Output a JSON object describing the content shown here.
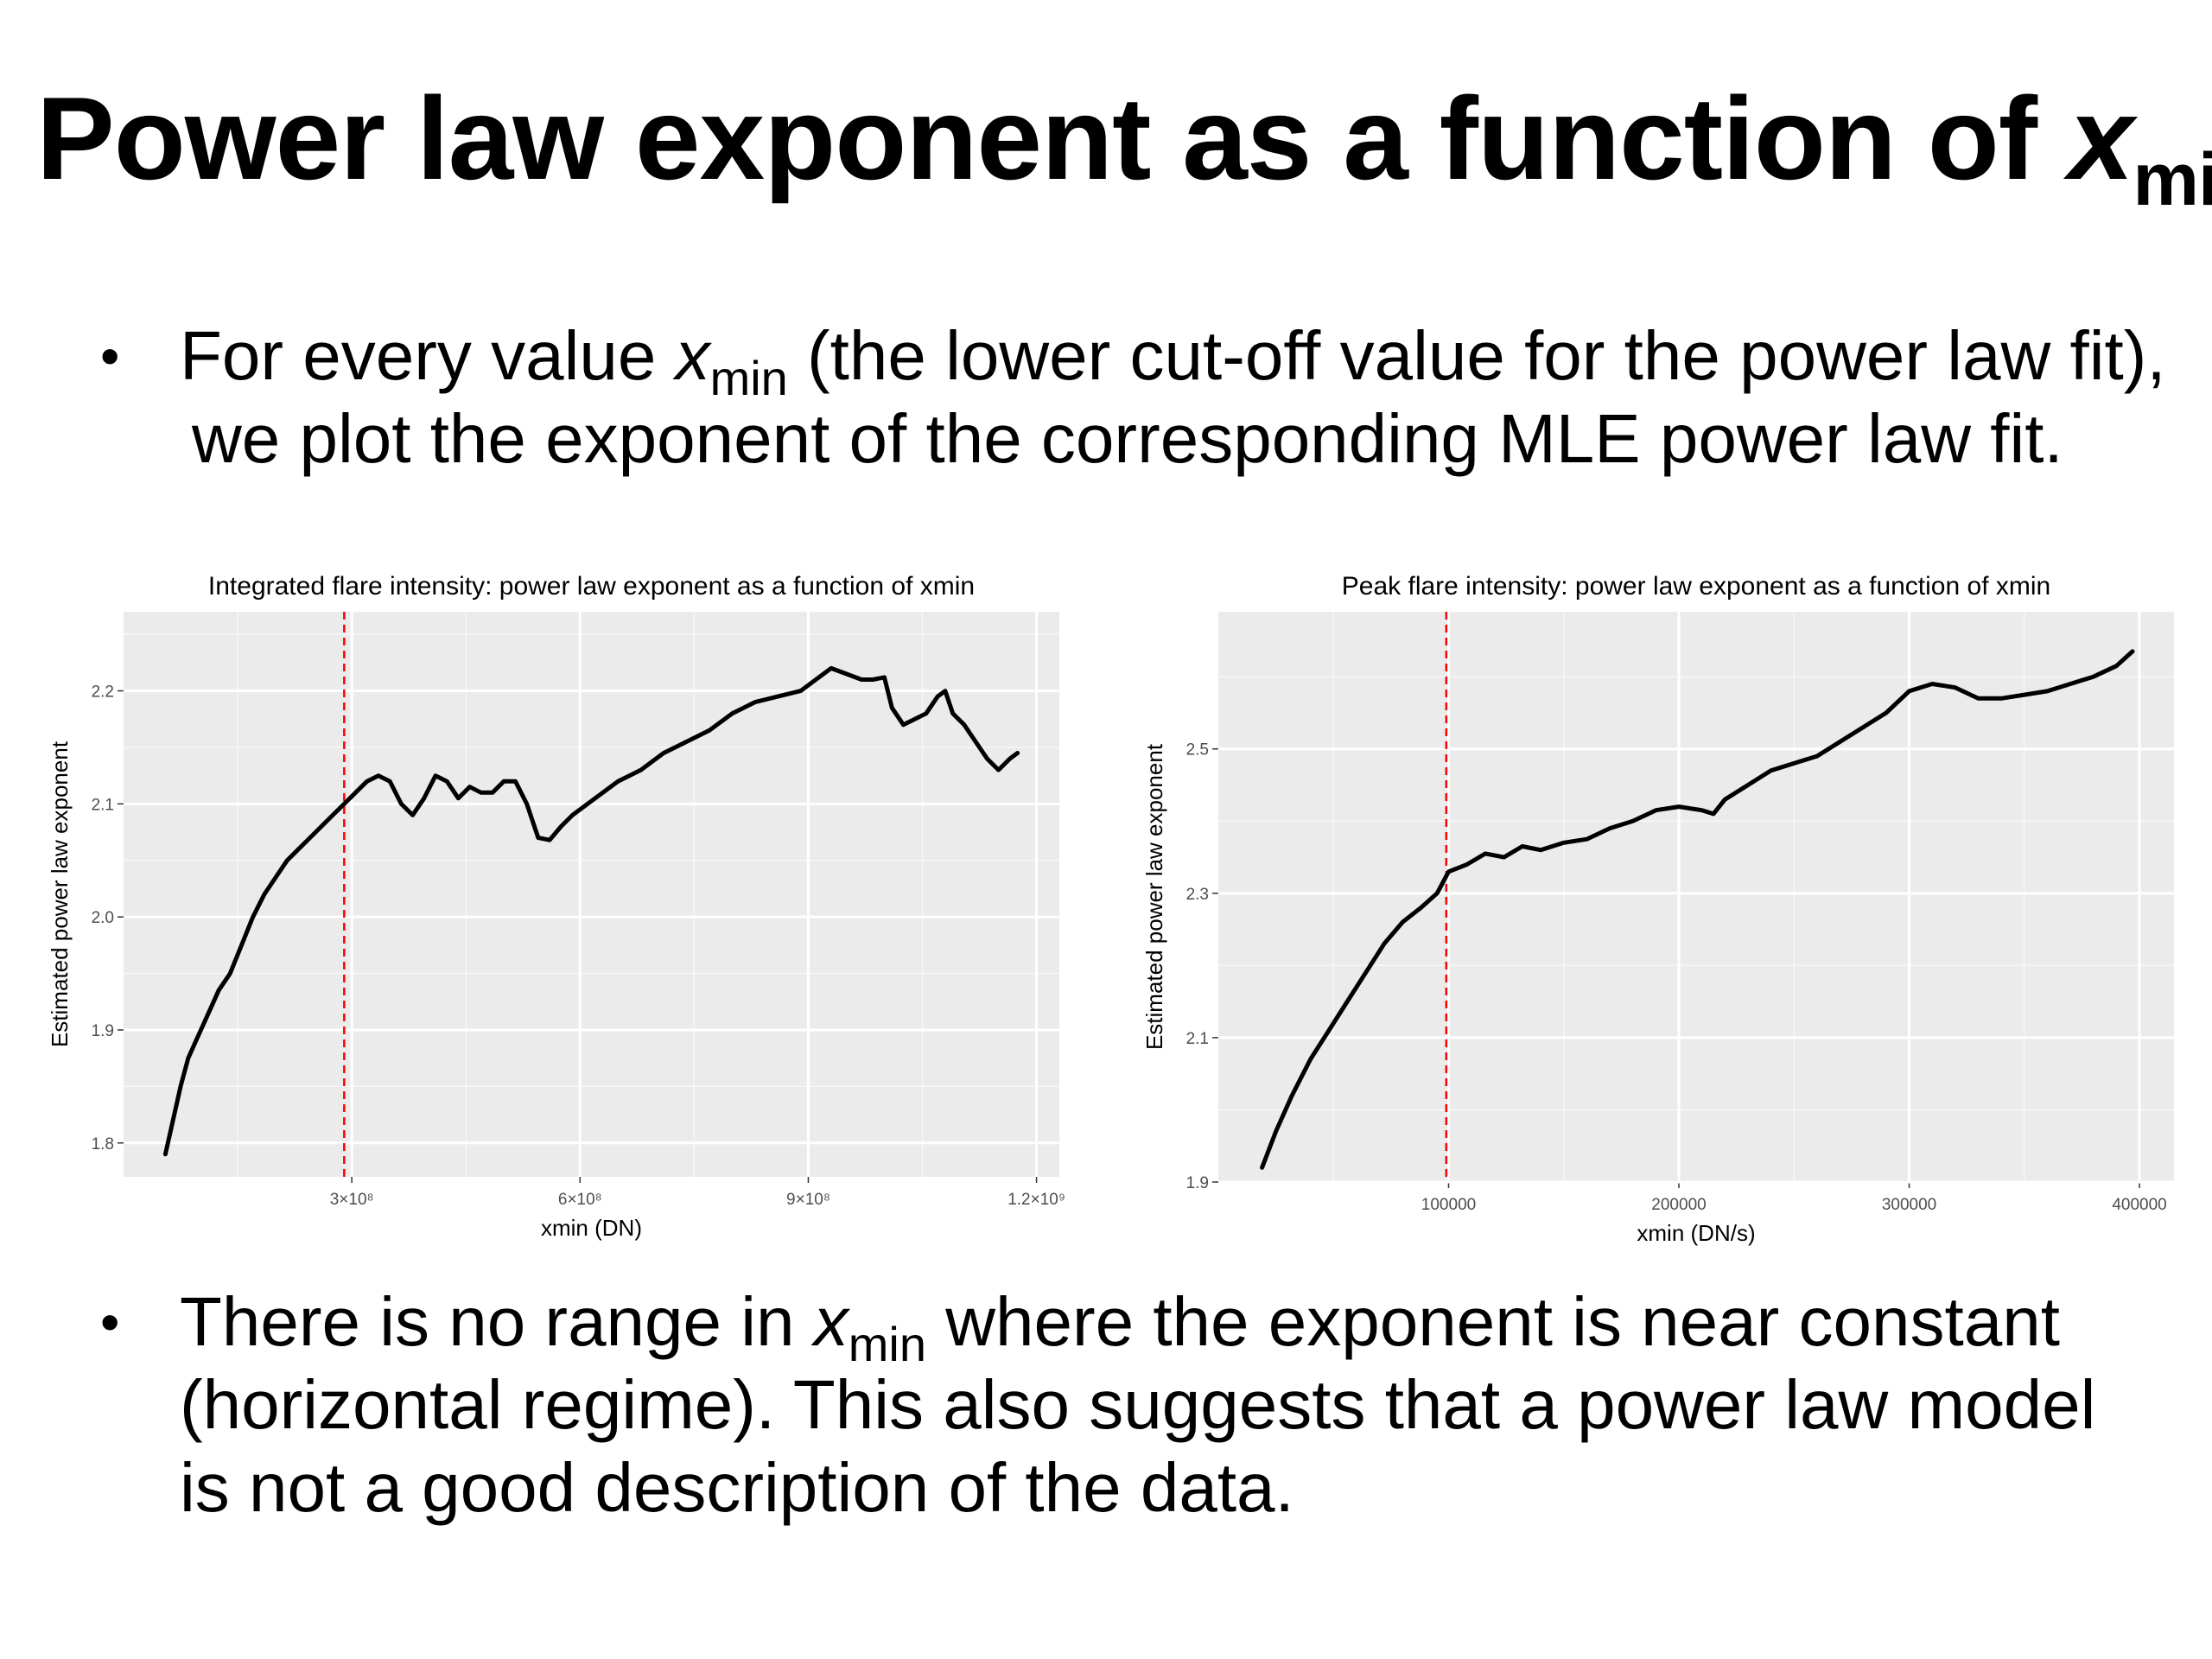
{
  "slide": {
    "title_text": "Power law exponent as a function of ",
    "title_var": "x",
    "title_sub": "min",
    "bullets": [
      {
        "bullet": "•",
        "l1_pre": "For every value ",
        "var": "x",
        "sub": "min",
        "l1_post": " (the lower cut-off value for the power law fit),",
        "l2": "we plot the exponent of the corresponding MLE power law fit."
      },
      {
        "bullet": "•",
        "l1_pre": "There is no range in ",
        "var": "x",
        "sub": "min",
        "l1_post": " where the exponent is near constant",
        "l2": "(horizontal regime). This also suggests that a power law model",
        "l3": "is not a good description of the data."
      }
    ]
  },
  "chart_data": [
    {
      "type": "line",
      "title": "Integrated flare intensity: power law exponent as a function of xmin",
      "xlabel": "xmin (DN)",
      "ylabel": "Estimated power law exponent",
      "xlim": [
        0,
        1230000000
      ],
      "ylim": [
        1.77,
        2.27
      ],
      "xticks": [
        300000000,
        600000000,
        900000000,
        1200000000
      ],
      "xtick_labels": [
        "3×10⁸",
        "6×10⁸",
        "9×10⁸",
        "1.2×10⁹"
      ],
      "yticks": [
        1.8,
        1.9,
        2.0,
        2.1,
        2.2
      ],
      "ytick_labels": [
        "1.8",
        "1.9",
        "2.0",
        "2.1",
        "2.2"
      ],
      "vline": 290000000,
      "vline_color": "#ff0000",
      "line_color": "#000000",
      "panel_background": "#ebebeb",
      "grid_color": "#ffffff",
      "grid": true,
      "series": [
        {
          "x": [
            55000000,
            65000000,
            75000000,
            85000000,
            95000000,
            105000000,
            115000000,
            125000000,
            140000000,
            155000000,
            170000000,
            185000000,
            200000000,
            215000000,
            230000000,
            245000000,
            260000000,
            275000000,
            290000000,
            305000000,
            320000000,
            335000000,
            350000000,
            365000000,
            380000000,
            395000000,
            410000000,
            425000000,
            440000000,
            455000000,
            470000000,
            485000000,
            500000000,
            515000000,
            530000000,
            545000000,
            560000000,
            575000000,
            590000000,
            620000000,
            650000000,
            680000000,
            710000000,
            740000000,
            770000000,
            800000000,
            830000000,
            860000000,
            890000000,
            910000000,
            930000000,
            950000000,
            970000000,
            985000000,
            1000000000,
            1010000000,
            1025000000,
            1040000000,
            1055000000,
            1070000000,
            1080000000,
            1090000000,
            1105000000,
            1120000000,
            1135000000,
            1150000000,
            1165000000,
            1175000000
          ],
          "y": [
            1.79,
            1.82,
            1.85,
            1.875,
            1.89,
            1.905,
            1.92,
            1.935,
            1.95,
            1.975,
            2.0,
            2.02,
            2.035,
            2.05,
            2.06,
            2.07,
            2.08,
            2.09,
            2.1,
            2.11,
            2.12,
            2.125,
            2.12,
            2.1,
            2.09,
            2.105,
            2.125,
            2.12,
            2.105,
            2.115,
            2.11,
            2.11,
            2.12,
            2.12,
            2.1,
            2.07,
            2.068,
            2.08,
            2.09,
            2.105,
            2.12,
            2.13,
            2.145,
            2.155,
            2.165,
            2.18,
            2.19,
            2.195,
            2.2,
            2.21,
            2.22,
            2.215,
            2.21,
            2.21,
            2.212,
            2.185,
            2.17,
            2.175,
            2.18,
            2.195,
            2.2,
            2.18,
            2.17,
            2.155,
            2.14,
            2.13,
            2.14,
            2.145
          ]
        }
      ]
    },
    {
      "type": "line",
      "title": "Peak flare intensity: power law exponent as a function of xmin",
      "xlabel": "xmin (DN/s)",
      "ylabel": "Estimated power law exponent",
      "xlim": [
        0,
        415000
      ],
      "ylim": [
        1.9,
        2.69
      ],
      "xticks": [
        100000,
        200000,
        300000,
        400000
      ],
      "xtick_labels": [
        "100000",
        "200000",
        "300000",
        "400000"
      ],
      "yticks": [
        1.9,
        2.1,
        2.3,
        2.5
      ],
      "ytick_labels": [
        "1.9",
        "2.1",
        "2.3",
        "2.5"
      ],
      "vline": 99000,
      "vline_color": "#ff0000",
      "line_color": "#000000",
      "panel_background": "#ebebeb",
      "grid_color": "#ffffff",
      "grid": true,
      "series": [
        {
          "x": [
            19000,
            25000,
            32000,
            40000,
            48000,
            56000,
            64000,
            72000,
            80000,
            88000,
            95000,
            100000,
            108000,
            116000,
            124000,
            132000,
            140000,
            150000,
            160000,
            170000,
            180000,
            190000,
            200000,
            210000,
            215000,
            220000,
            230000,
            240000,
            250000,
            260000,
            270000,
            280000,
            290000,
            300000,
            310000,
            320000,
            330000,
            340000,
            350000,
            360000,
            370000,
            380000,
            390000,
            397000
          ],
          "y": [
            1.92,
            1.97,
            2.02,
            2.07,
            2.11,
            2.15,
            2.19,
            2.23,
            2.26,
            2.28,
            2.3,
            2.33,
            2.34,
            2.355,
            2.35,
            2.365,
            2.36,
            2.37,
            2.375,
            2.39,
            2.4,
            2.415,
            2.42,
            2.415,
            2.41,
            2.43,
            2.45,
            2.47,
            2.48,
            2.49,
            2.51,
            2.53,
            2.55,
            2.58,
            2.59,
            2.585,
            2.57,
            2.57,
            2.575,
            2.58,
            2.59,
            2.6,
            2.615,
            2.635
          ]
        }
      ]
    }
  ]
}
